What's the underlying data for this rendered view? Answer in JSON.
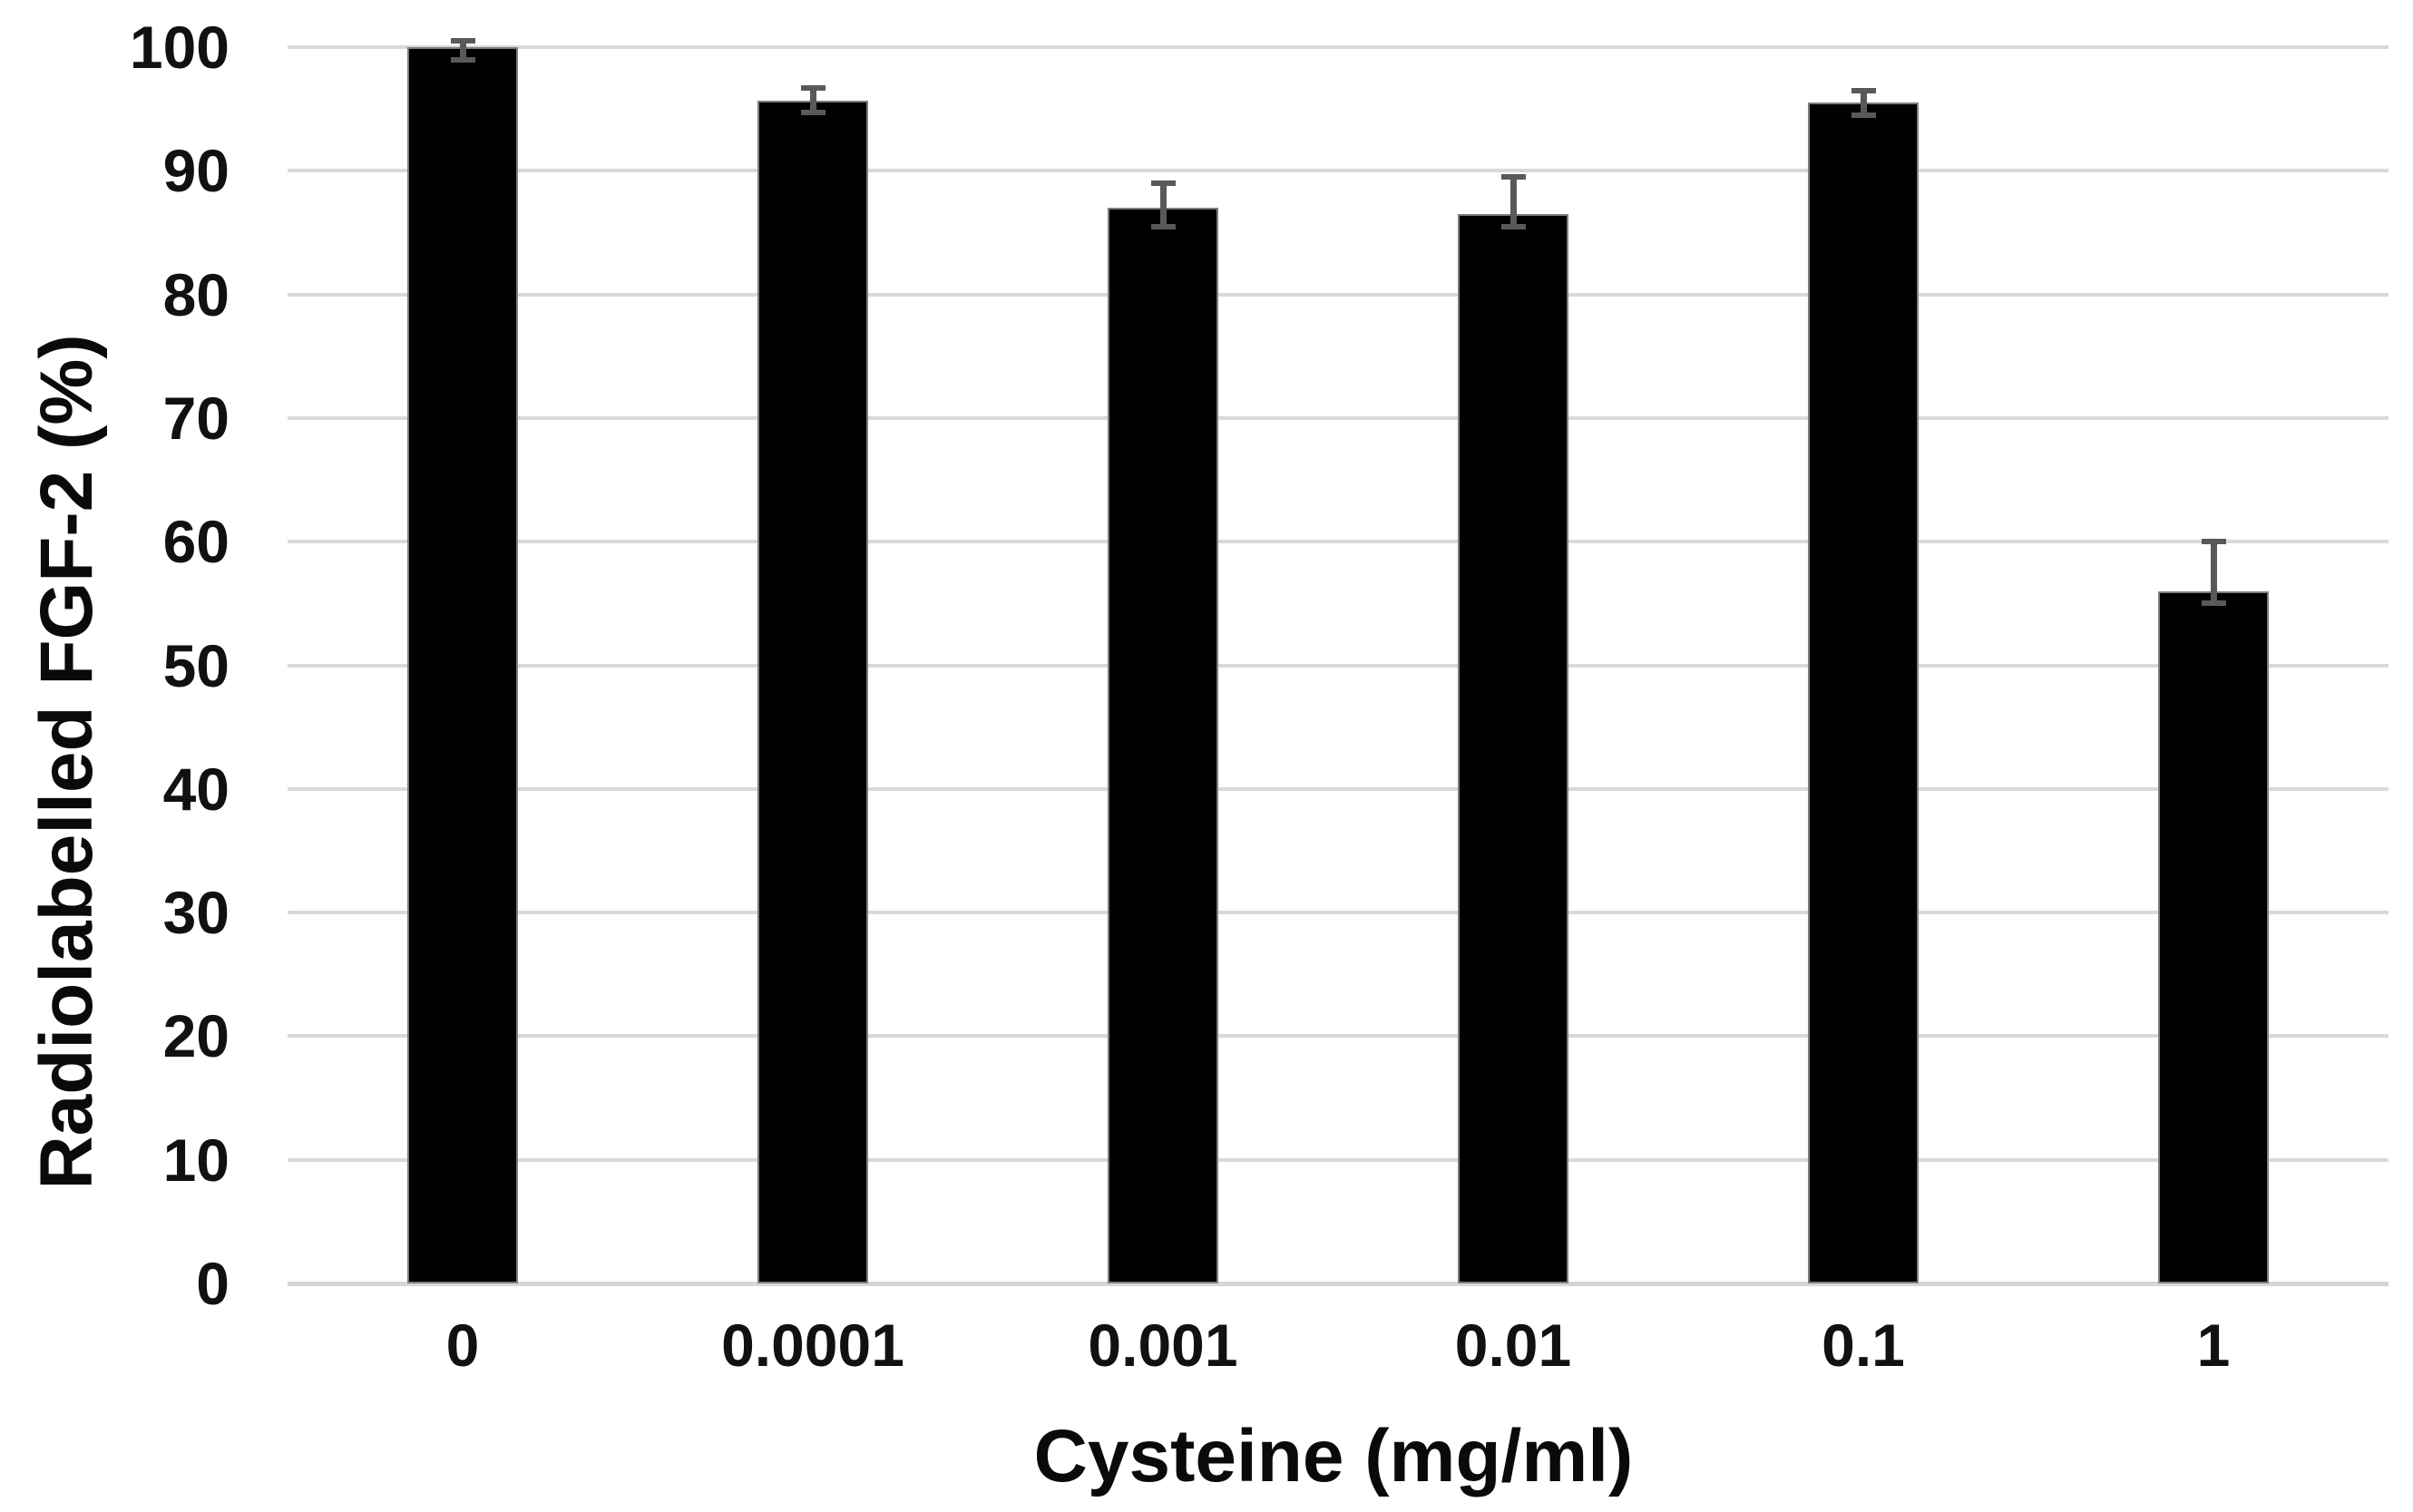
{
  "chart_data": {
    "type": "bar",
    "title": "",
    "categories": [
      "0",
      "0.0001",
      "0.001",
      "0.01",
      "0.1",
      "1"
    ],
    "values": [
      100,
      95.7,
      87,
      86.5,
      95.5,
      56
    ],
    "error_up": [
      0.5,
      1,
      2,
      3,
      1,
      4
    ],
    "error_down": [
      1,
      1,
      1.5,
      1,
      1,
      1
    ],
    "xlabel": "Cysteine (mg/ml)",
    "ylabel": "Radiolabelled FGF-2 (%)",
    "ylim": [
      0,
      100
    ],
    "yticks": [
      0,
      10,
      20,
      30,
      40,
      50,
      60,
      70,
      80,
      90,
      100
    ],
    "grid": true,
    "legend": false,
    "bar_color": "#000000",
    "bar_border_color": "#7d7d7d",
    "error_bar_color": "#595959",
    "gridline_color": "#d9d9d9",
    "axis_line_color": "#d6d6d6",
    "text_color": "#111111"
  }
}
